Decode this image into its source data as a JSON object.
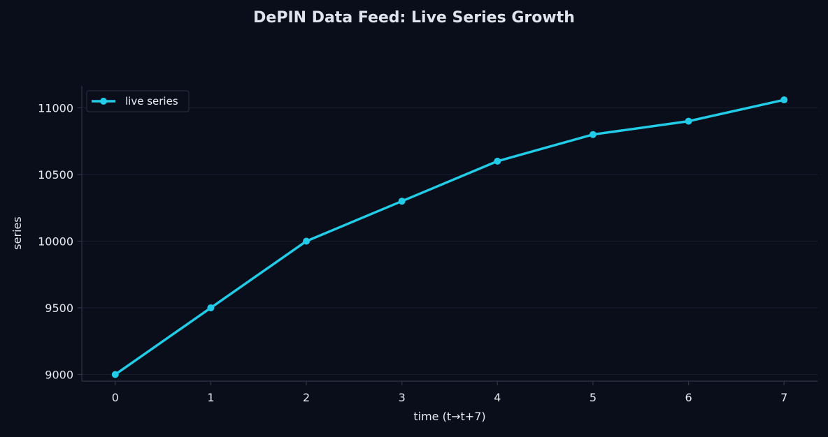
{
  "colors": {
    "background": "#0a0e1a",
    "axis": "#2e3446",
    "grid": "#161b2a",
    "text": "#e6e9f0",
    "title": "#dfe3ec",
    "series": "#22cbe6"
  },
  "chart_data": {
    "type": "line",
    "title": "DePIN Data Feed: Live Series Growth",
    "xlabel": "time (t→t+7)",
    "ylabel": "series",
    "x": [
      0,
      1,
      2,
      3,
      4,
      5,
      6,
      7
    ],
    "x_ticks": [
      "0",
      "1",
      "2",
      "3",
      "4",
      "5",
      "6",
      "7"
    ],
    "y_ticks": [
      "9000",
      "9500",
      "10000",
      "10500",
      "11000"
    ],
    "xlim": [
      -0.35,
      7.35
    ],
    "ylim": [
      8950,
      11165
    ],
    "grid": true,
    "legend_position": "top-left",
    "series": [
      {
        "name": "live series",
        "values": [
          9000,
          9500,
          10000,
          10300,
          10600,
          10800,
          10900,
          11060
        ],
        "markers": true
      }
    ]
  }
}
